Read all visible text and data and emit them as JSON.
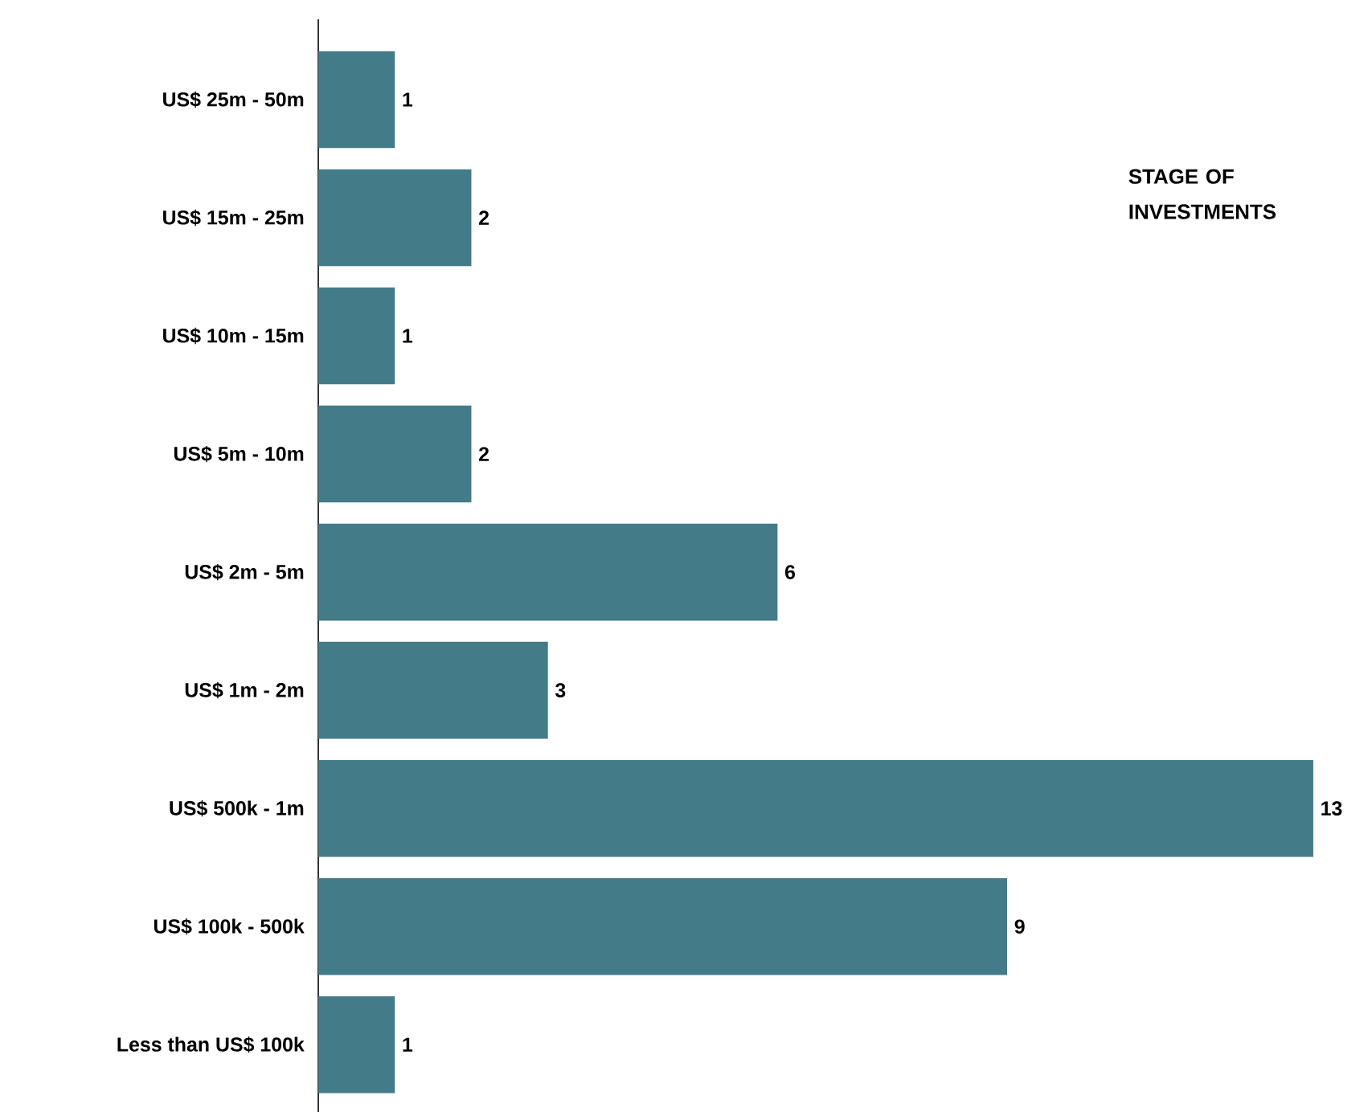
{
  "chart_data": {
    "type": "bar",
    "orientation": "horizontal",
    "title": "STAGE OF INVESTMENTS",
    "categories": [
      "US$ 25m - 50m",
      "US$ 15m - 25m",
      "US$ 10m - 15m",
      "US$ 5m - 10m",
      "US$ 2m - 5m",
      "US$ 1m - 2m",
      "US$ 500k - 1m",
      "US$ 100k - 500k",
      "Less than US$ 100k"
    ],
    "values": [
      1,
      2,
      1,
      2,
      6,
      3,
      13,
      9,
      1
    ],
    "color": "#437b88",
    "data_labels": true
  }
}
